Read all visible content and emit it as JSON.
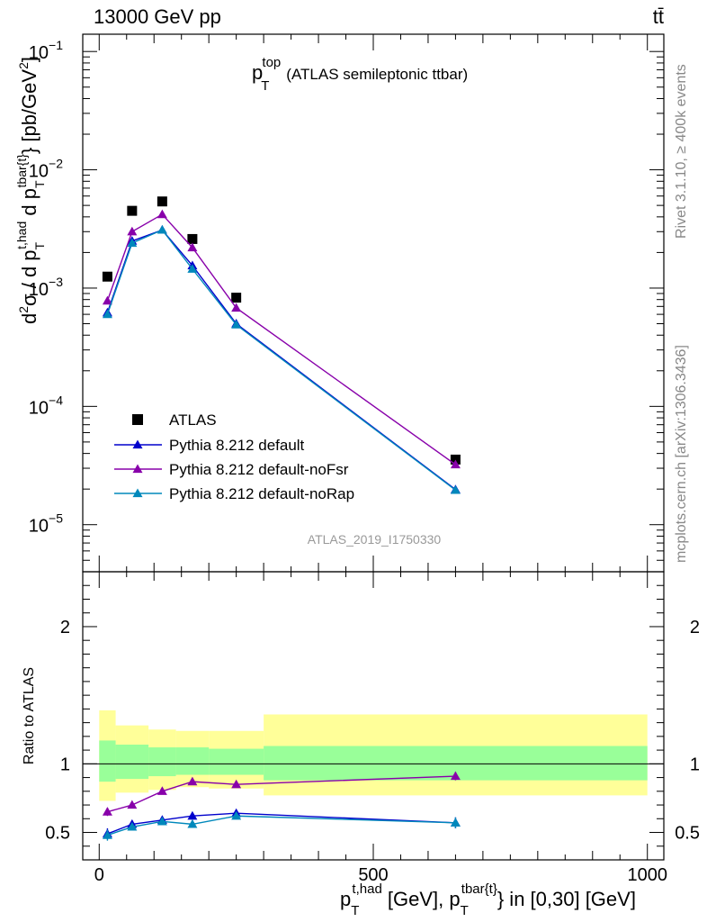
{
  "header": {
    "energy_label": "13000 GeV pp",
    "process_label": "tt̄",
    "title_main": "p",
    "title_sup": "top",
    "title_sub": "T",
    "title_rest": "(ATLAS semileptonic ttbar)",
    "watermark": "ATLAS_2019_I1750330",
    "side_rivet": "Rivet 3.1.10, ≥ 400k events",
    "side_site": "mcplots.cern.ch [arXiv:1306.3436]"
  },
  "axes": {
    "ylabel_main": "d²σ / d p_T^{t,had} d p_T^{tbar{t}} [pb/GeV²]",
    "ylabel_ratio": "Ratio to ATLAS",
    "xlabel": "p_T^{t,had} [GeV], p_T^{tbar{t}} in [0,30] [GeV]",
    "main_yticks": [
      {
        "value": 0.1,
        "base": "10",
        "exp": "−1"
      },
      {
        "value": 0.01,
        "base": "10",
        "exp": "−2"
      },
      {
        "value": 0.001,
        "base": "10",
        "exp": "−3"
      },
      {
        "value": 0.0001,
        "base": "10",
        "exp": "−4"
      },
      {
        "value": 1e-05,
        "base": "10",
        "exp": "−5"
      }
    ],
    "ratio_yticks": [
      {
        "value": 0.5,
        "label": "0.5"
      },
      {
        "value": 1,
        "label": "1"
      },
      {
        "value": 2,
        "label": "2"
      }
    ],
    "xticks": [
      {
        "value": 0,
        "label": "0"
      },
      {
        "value": 500,
        "label": "500"
      },
      {
        "value": 1000,
        "label": "1000"
      }
    ]
  },
  "chart_data": {
    "type": "scatter",
    "title": "p_T^top (ATLAS semileptonic ttbar)",
    "xlim": [
      -30,
      1030
    ],
    "ylim_main": [
      4e-06,
      0.14
    ],
    "ylim_ratio": [
      0.3,
      2.4
    ],
    "yscale_main": "log",
    "legend_position": "center-left",
    "series": [
      {
        "name": "ATLAS",
        "color": "#000000",
        "marker": "square",
        "x": [
          15,
          60,
          115,
          170,
          250,
          650
        ],
        "y": [
          0.00125,
          0.0045,
          0.0054,
          0.0026,
          0.00083,
          3.55e-05
        ]
      },
      {
        "name": "Pythia 8.212 default",
        "color": "#0000cc",
        "marker": "triangle",
        "x": [
          15,
          60,
          115,
          170,
          250,
          650
        ],
        "y": [
          0.00062,
          0.0025,
          0.0031,
          0.00155,
          0.0005,
          1.98e-05
        ],
        "ratio": [
          0.49,
          0.56,
          0.59,
          0.62,
          0.64,
          0.57
        ],
        "ratio_err": [
          0.04,
          0.015,
          0.012,
          0.015,
          0.025,
          0.04
        ]
      },
      {
        "name": "Pythia 8.212 default-noFsr",
        "color": "#8800aa",
        "marker": "triangle",
        "x": [
          15,
          60,
          115,
          170,
          250,
          650
        ],
        "y": [
          0.00078,
          0.003,
          0.0042,
          0.0022,
          0.00068,
          3.22e-05
        ],
        "ratio": [
          0.65,
          0.7,
          0.8,
          0.87,
          0.85,
          0.91
        ],
        "ratio_err": [
          0.03,
          0.015,
          0.012,
          0.015,
          0.02,
          0.03
        ]
      },
      {
        "name": "Pythia 8.212 default-noRap",
        "color": "#0088bb",
        "marker": "triangle",
        "x": [
          15,
          60,
          115,
          170,
          250,
          650
        ],
        "y": [
          0.0006,
          0.0024,
          0.0031,
          0.00145,
          0.00049,
          1.96e-05
        ],
        "ratio": [
          0.48,
          0.54,
          0.58,
          0.56,
          0.62,
          0.57
        ],
        "ratio_err": [
          0.04,
          0.015,
          0.012,
          0.015,
          0.025,
          0.04
        ]
      }
    ],
    "uncertainty_bands": {
      "bins": [
        [
          0,
          30
        ],
        [
          30,
          90
        ],
        [
          90,
          140
        ],
        [
          140,
          200
        ],
        [
          200,
          300
        ],
        [
          300,
          1000
        ]
      ],
      "inner": [
        [
          0.87,
          1.17
        ],
        [
          0.89,
          1.14
        ],
        [
          0.91,
          1.12
        ],
        [
          0.92,
          1.12
        ],
        [
          0.92,
          1.11
        ],
        [
          0.88,
          1.13
        ]
      ],
      "outer": [
        [
          0.73,
          1.39
        ],
        [
          0.79,
          1.28
        ],
        [
          0.81,
          1.25
        ],
        [
          0.83,
          1.24
        ],
        [
          0.82,
          1.24
        ],
        [
          0.77,
          1.36
        ]
      ],
      "inner_color": "#99ff99",
      "outer_color": "#ffff99"
    }
  }
}
